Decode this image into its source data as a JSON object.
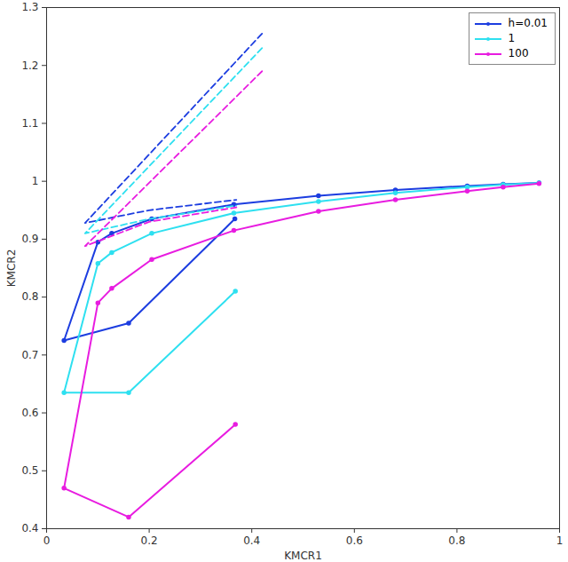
{
  "chart_data": {
    "type": "line",
    "x_label": "KMCR1",
    "y_label": "KMCR2",
    "xlim": [
      0,
      1
    ],
    "ylim": [
      0.4,
      1.3
    ],
    "xticks": [
      0,
      0.2,
      0.4,
      0.6,
      0.8,
      1
    ],
    "yticks": [
      0.4,
      0.5,
      0.6,
      0.7,
      0.8,
      0.9,
      1,
      1.1,
      1.2,
      1.3
    ],
    "legend": "northeast",
    "series": [
      {
        "name": "h=0.01",
        "color": "#1c3de0",
        "line_style": "solid",
        "marker": "point",
        "x": [
          0.367,
          0.16,
          0.034,
          0.1,
          0.127,
          0.205,
          0.365,
          0.53,
          0.68,
          0.82,
          0.89,
          0.96
        ],
        "values": [
          0.935,
          0.755,
          0.725,
          0.895,
          0.91,
          0.935,
          0.96,
          0.975,
          0.985,
          0.992,
          0.995,
          0.997
        ]
      },
      {
        "name": "1",
        "color": "#2ee0f0",
        "line_style": "solid",
        "marker": "point",
        "x": [
          0.368,
          0.16,
          0.034,
          0.1,
          0.127,
          0.205,
          0.365,
          0.53,
          0.68,
          0.82,
          0.89,
          0.96
        ],
        "values": [
          0.81,
          0.635,
          0.635,
          0.858,
          0.877,
          0.91,
          0.945,
          0.965,
          0.98,
          0.99,
          0.994,
          0.997
        ]
      },
      {
        "name": "100",
        "color": "#e81ce0",
        "line_style": "solid",
        "marker": "point",
        "x": [
          0.368,
          0.16,
          0.034,
          0.1,
          0.127,
          0.205,
          0.365,
          0.53,
          0.68,
          0.82,
          0.89,
          0.96
        ],
        "values": [
          0.58,
          0.42,
          0.47,
          0.79,
          0.815,
          0.865,
          0.915,
          0.948,
          0.968,
          0.983,
          0.99,
          0.996
        ]
      },
      {
        "color": "#1c3de0",
        "line_style": "dashed",
        "marker": "none",
        "x": [
          0.42,
          0.075,
          0.2,
          0.37
        ],
        "values": [
          1.255,
          0.928,
          0.95,
          0.968
        ]
      },
      {
        "color": "#2ee0f0",
        "line_style": "dashed",
        "marker": "none",
        "x": [
          0.42,
          0.075,
          0.2,
          0.37
        ],
        "values": [
          1.23,
          0.91,
          0.935,
          0.958
        ]
      },
      {
        "color": "#e81ce0",
        "line_style": "dashed",
        "marker": "none",
        "x": [
          0.42,
          0.075,
          0.2,
          0.37
        ],
        "values": [
          1.19,
          0.888,
          0.93,
          0.955
        ]
      }
    ]
  }
}
